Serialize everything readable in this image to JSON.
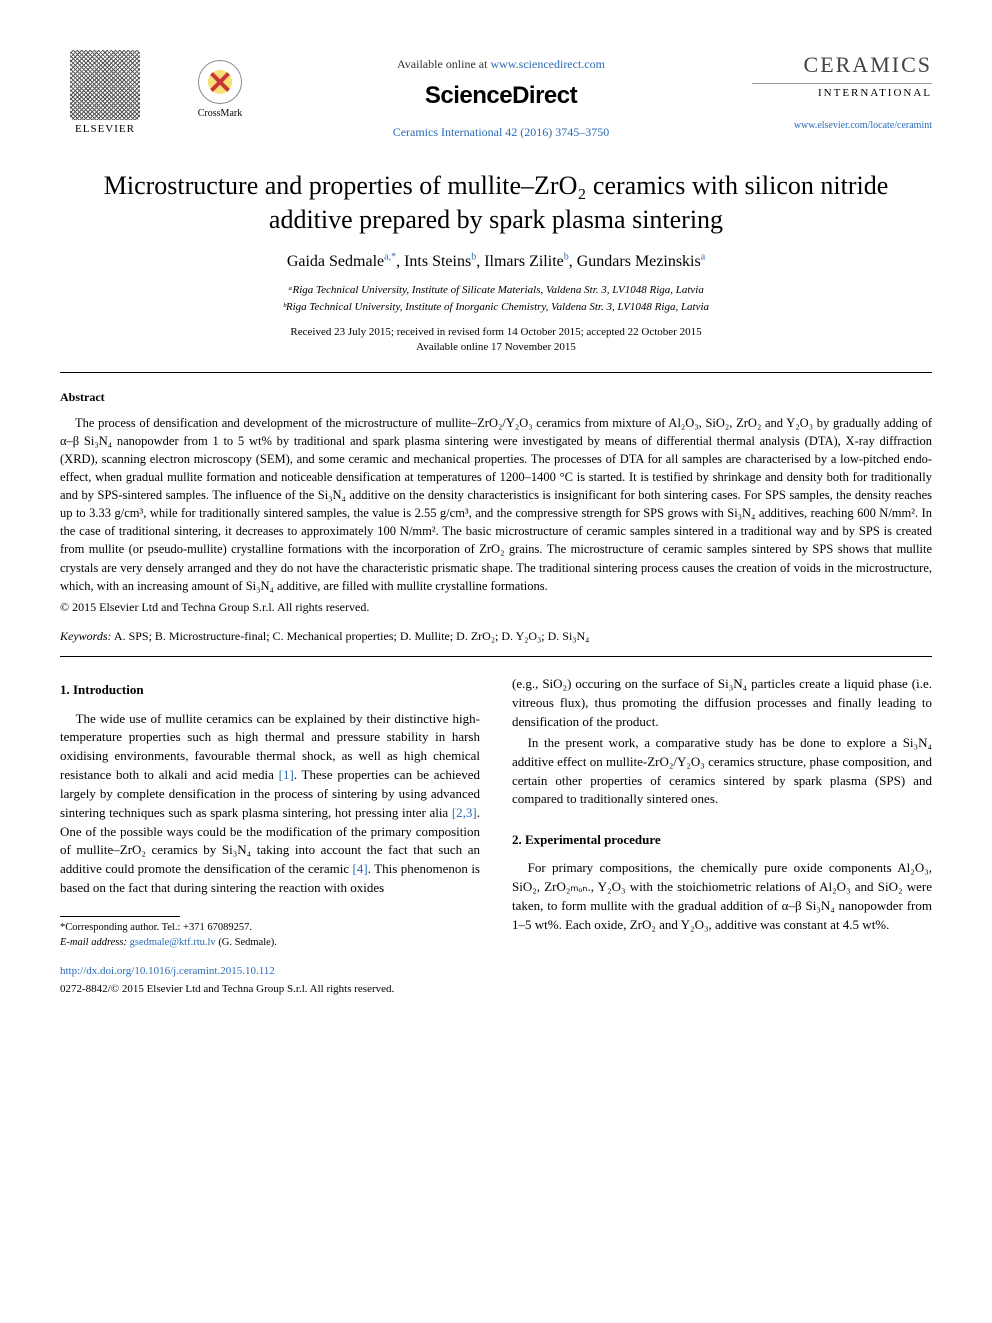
{
  "header": {
    "elsevier_label": "ELSEVIER",
    "crossmark_label": "CrossMark",
    "available_prefix": "Available online at ",
    "available_url": "www.sciencedirect.com",
    "sciencedirect": "ScienceDirect",
    "journal_ref": "Ceramics International 42 (2016) 3745–3750",
    "journal_title": "CERAMICS",
    "journal_sub": "INTERNATIONAL",
    "journal_link": "www.elsevier.com/locate/ceramint"
  },
  "title": "Microstructure and properties of mullite–ZrO₂ ceramics with silicon nitride additive prepared by spark plasma sintering",
  "authors_html": "Gaida Sedmale<sup>a,*</sup>, Ints Steins<sup>b</sup>, Ilmars Zilite<sup>b</sup>, Gundars Mezinskis<sup>a</sup>",
  "affiliations": [
    "ᵃRiga Technical University, Institute of Silicate Materials, Valdena Str. 3, LV1048 Riga, Latvia",
    "ᵇRiga Technical University, Institute of Inorganic Chemistry, Valdena Str. 3, LV1048 Riga, Latvia"
  ],
  "dates_line1": "Received 23 July 2015; received in revised form 14 October 2015; accepted 22 October 2015",
  "dates_line2": "Available online 17 November 2015",
  "abstract_heading": "Abstract",
  "abstract": "The process of densification and development of the microstructure of mullite–ZrO₂/Y₂O₃ ceramics from mixture of Al₂O₃, SiO₂, ZrO₂ and Y₂O₃ by gradually adding of α–β Si₃N₄ nanopowder from 1 to 5 wt% by traditional and spark plasma sintering were investigated by means of differential thermal analysis (DTA), X-ray diffraction (XRD), scanning electron microscopy (SEM), and some ceramic and mechanical properties. The processes of DTA for all samples are characterised by a low-pitched endo-effect, when gradual mullite formation and noticeable densification at temperatures of 1200–1400 °C is started. It is testified by shrinkage and density both for traditionally and by SPS-sintered samples. The influence of the Si₃N₄ additive on the density characteristics is insignificant for both sintering cases. For SPS samples, the density reaches up to 3.33 g/cm³, while for traditionally sintered samples, the value is 2.55 g/cm³, and the compressive strength for SPS grows with Si₃N₄ additives, reaching 600 N/mm². In the case of traditional sintering, it decreases to approximately 100 N/mm². The basic microstructure of ceramic samples sintered in a traditional way and by SPS is created from mullite (or pseudo-mullite) crystalline formations with the incorporation of ZrO₂ grains. The microstructure of ceramic samples sintered by SPS shows that mullite crystals are very densely arranged and they do not have the characteristic prismatic shape. The traditional sintering process causes the creation of voids in the microstructure, which, with an increasing amount of Si₃N₄ additive, are filled with mullite crystalline formations.",
  "copyright": "© 2015 Elsevier Ltd and Techna Group S.r.l. All rights reserved.",
  "keywords_label": "Keywords:",
  "keywords": "A. SPS; B. Microstructure-final; C. Mechanical properties; D. Mullite; D. ZrO₂; D. Y₂O₃; D. Si₃N₄",
  "intro": {
    "heading": "1.  Introduction",
    "p1_html": "The wide use of mullite ceramics can be explained by their distinctive high-temperature properties such as high thermal and pressure stability in harsh oxidising environments, favourable thermal shock, as well as high chemical resistance both to alkali and acid media <span class='ref-link'>[1]</span>. These properties can be achieved largely by complete densification in the process of sintering by using advanced sintering techniques such as spark plasma sintering, hot pressing inter alia <span class='ref-link'>[2,3]</span>. One of the possible ways could be the modification of the primary composition of mullite–ZrO₂ ceramics by Si₃N₄ taking into account the fact that such an additive could promote the densification of the ceramic <span class='ref-link'>[4]</span>. This phenomenon is based on the fact that during sintering the reaction with oxides",
    "p2_html": "(e.g., SiO₂) occuring on the surface of Si₃N₄ particles create a liquid phase (i.e. vitreous flux), thus promoting the diffusion processes and finally leading to densification of the product.",
    "p3_html": "In the present work, a comparative study has be done to explore a Si₃N₄ additive effect on mullite-ZrO₂/Y₂O₃ ceramics structure, phase composition, and certain other properties of ceramics sintered by spark plasma (SPS) and compared to traditionally sintered ones."
  },
  "experimental": {
    "heading": "2.  Experimental procedure",
    "p1_html": "For primary compositions, the chemically pure oxide components Al₂O₃, SiO₂, ZrO₂ₘₒₙ., Y₂O₃ with the stoichiometric relations of Al₂O₃ and SiO₂ were taken, to form mullite with the gradual addition of α–β Si₃N₄ nanopowder from 1–5 wt%. Each oxide, ZrO₂ and Y₂O₃, additive was constant at 4.5 wt%."
  },
  "footnote": {
    "corr": "*Corresponding author. Tel.: +371 67089257.",
    "email_label": "E-mail address: ",
    "email": "gsedmale@ktf.rtu.lv",
    "email_suffix": " (G. Sedmale)."
  },
  "doi": "http://dx.doi.org/10.1016/j.ceramint.2015.10.112",
  "issn": "0272-8842/© 2015 Elsevier Ltd and Techna Group S.r.l. All rights reserved.",
  "colors": {
    "link": "#2a6bb8",
    "text": "#000000",
    "bg": "#ffffff"
  },
  "typography": {
    "body_pt": 14,
    "title_pt": 26,
    "authors_pt": 16,
    "small_pt": 11
  }
}
